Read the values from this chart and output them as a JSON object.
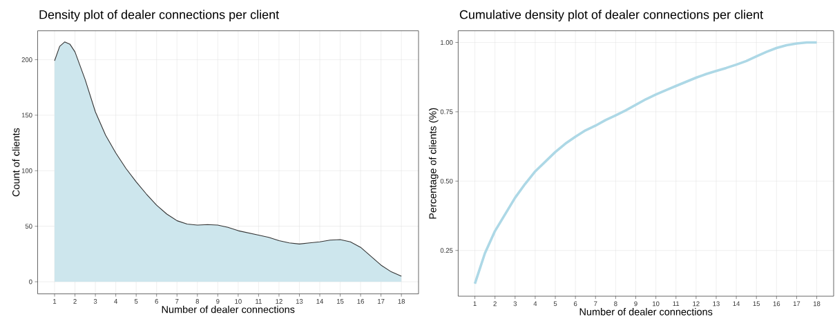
{
  "chart_data": [
    {
      "type": "area",
      "title": "Density plot of dealer connections per client",
      "xlabel": "Number of dealer connections",
      "ylabel": "Count of clients",
      "grid": true,
      "xlim": [
        0.17,
        18.84
      ],
      "ylim": [
        -10.9,
        226
      ],
      "xticks": [
        1,
        2,
        3,
        4,
        5,
        6,
        7,
        8,
        9,
        10,
        11,
        12,
        13,
        14,
        15,
        16,
        17,
        18
      ],
      "yticks": [
        0,
        50,
        100,
        150,
        200
      ],
      "x": [
        1,
        1.25,
        1.5,
        1.75,
        2,
        2.5,
        3,
        3.5,
        4,
        4.5,
        5,
        5.5,
        6,
        6.5,
        7,
        7.5,
        8,
        8.5,
        9,
        9.5,
        10,
        10.5,
        11,
        11.5,
        12,
        12.5,
        13,
        13.5,
        14,
        14.5,
        15,
        15.5,
        16,
        16.5,
        17,
        17.5,
        18
      ],
      "series": [
        {
          "color": "#cde6ed",
          "values": [
            199,
            212,
            216,
            214,
            207,
            182,
            153,
            132,
            116,
            102,
            90,
            79,
            69,
            61,
            55,
            52,
            51,
            51.5,
            51,
            49,
            46,
            44,
            42,
            40,
            37,
            35,
            34,
            35,
            36,
            37.5,
            38,
            36,
            31,
            23,
            15,
            9,
            5
          ]
        }
      ]
    },
    {
      "type": "line",
      "title": "Cumulative density plot of dealer connections per client",
      "xlabel": "Number of dealer connections",
      "ylabel": "Percentage of clients (%)",
      "grid": true,
      "xlim": [
        0.17,
        18.84
      ],
      "ylim": [
        0.085,
        1.042
      ],
      "xticks": [
        1,
        2,
        3,
        4,
        5,
        6,
        7,
        8,
        9,
        10,
        11,
        12,
        13,
        14,
        15,
        16,
        17,
        18
      ],
      "yticks": [
        0.25,
        {
          "value": 0.5,
          "label": "0.50"
        },
        0.75,
        {
          "value": 1,
          "label": "1.00"
        }
      ],
      "x": [
        1,
        1.5,
        2,
        2.5,
        3,
        3.5,
        4,
        4.5,
        5,
        5.5,
        6,
        6.5,
        7,
        7.5,
        8,
        8.5,
        9,
        9.5,
        10,
        10.5,
        11,
        11.5,
        12,
        12.5,
        13,
        13.5,
        14,
        14.5,
        15,
        15.5,
        16,
        16.5,
        17,
        17.5,
        18
      ],
      "series": [
        {
          "color": "#add8e6",
          "values": [
            0.13,
            0.24,
            0.32,
            0.38,
            0.44,
            0.49,
            0.535,
            0.57,
            0.605,
            0.635,
            0.66,
            0.683,
            0.7,
            0.72,
            0.737,
            0.755,
            0.775,
            0.795,
            0.812,
            0.828,
            0.843,
            0.858,
            0.873,
            0.886,
            0.897,
            0.908,
            0.92,
            0.933,
            0.95,
            0.966,
            0.98,
            0.99,
            0.996,
            1.0,
            1.0
          ]
        }
      ]
    }
  ]
}
